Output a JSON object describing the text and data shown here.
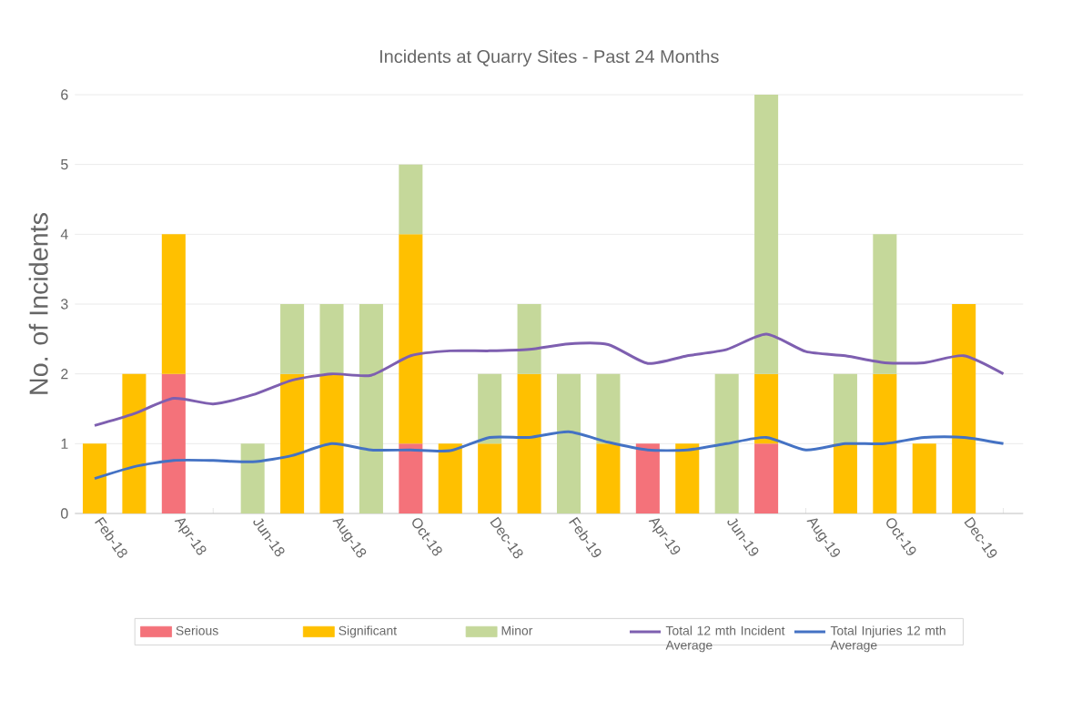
{
  "chart_data": {
    "type": "bar",
    "title": "Incidents at Quarry Sites - Past 24 Months",
    "ylabel": "No. of Incidents",
    "categories": [
      "Feb-18",
      null,
      "Apr-18",
      null,
      "Jun-18",
      null,
      "Aug-18",
      null,
      "Oct-18",
      null,
      "Dec-18",
      null,
      "Feb-19",
      null,
      "Apr-19",
      null,
      "Jun-19",
      null,
      "Aug-19",
      null,
      "Oct-19",
      null,
      "Dec-19",
      null
    ],
    "stacked": true,
    "ylim": [
      0,
      6
    ],
    "yticks": [
      0,
      1,
      2,
      3,
      4,
      5,
      6
    ],
    "grid": "y",
    "legend": "bottom",
    "series": [
      {
        "name": "Serious",
        "color": "#f4727a",
        "values": [
          0,
          0,
          2,
          0,
          0,
          0,
          0,
          0,
          1,
          0,
          0,
          0,
          0,
          0,
          1,
          0,
          0,
          1,
          0,
          0,
          0,
          0,
          0,
          0
        ]
      },
      {
        "name": "Significant",
        "color": "#ffc000",
        "values": [
          1,
          2,
          2,
          0,
          0,
          2,
          2,
          0,
          3,
          1,
          1,
          2,
          0,
          1,
          0,
          1,
          0,
          1,
          0,
          1,
          2,
          1,
          3,
          0
        ]
      },
      {
        "name": "Minor",
        "color": "#c5d89a",
        "values": [
          0,
          0,
          0,
          0,
          1,
          1,
          1,
          3,
          1,
          0,
          1,
          1,
          2,
          1,
          0,
          0,
          2,
          4,
          0,
          1,
          2,
          0,
          0,
          0
        ]
      },
      {
        "name": "Total 12 mth Incident Average",
        "type": "line",
        "color": "#7e5fb0",
        "values": [
          1.26,
          1.43,
          1.65,
          1.57,
          1.7,
          1.91,
          2.0,
          1.98,
          2.26,
          2.33,
          2.33,
          2.35,
          2.43,
          2.42,
          2.15,
          2.26,
          2.35,
          2.57,
          2.32,
          2.26,
          2.16,
          2.16,
          2.26,
          2.0
        ]
      },
      {
        "name": "Total Injuries 12 mth Average",
        "type": "line",
        "color": "#4472c4",
        "values": [
          0.5,
          0.67,
          0.76,
          0.76,
          0.74,
          0.83,
          1.0,
          0.91,
          0.91,
          0.9,
          1.09,
          1.09,
          1.17,
          1.02,
          0.91,
          0.91,
          1.0,
          1.09,
          0.91,
          1.0,
          1.0,
          1.09,
          1.09,
          1.0
        ]
      }
    ]
  }
}
